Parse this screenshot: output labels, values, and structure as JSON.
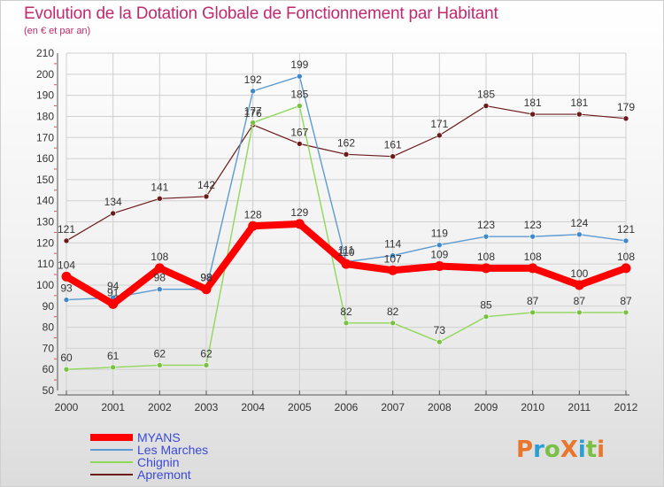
{
  "title": "Evolution de la Dotation Globale de Fonctionnement par Habitant",
  "subtitle": "(en € et par an)",
  "logo": {
    "text": "ProXiti",
    "colors": [
      "#e8762d",
      "#2a9fd6",
      "#7ac143",
      "#e8762d",
      "#2a9fd6",
      "#7ac143",
      "#e8762d"
    ]
  },
  "chart_data": {
    "type": "line",
    "title": "Evolution de la Dotation Globale de Fonctionnement par Habitant",
    "subtitle": "(en € et par an)",
    "xlabel": "",
    "ylabel": "",
    "ylim": [
      50,
      210
    ],
    "ystep": 10,
    "grid": true,
    "legend_position": "bottom-left",
    "categories": [
      "2000",
      "2001",
      "2002",
      "2003",
      "2004",
      "2005",
      "2006",
      "2007",
      "2008",
      "2009",
      "2010",
      "2011",
      "2012"
    ],
    "series": [
      {
        "name": "Apremont",
        "color": "#6b1a1a",
        "marker": "#6b1a1a",
        "width": 1.2,
        "values": [
          121,
          134,
          141,
          142,
          176,
          167,
          162,
          161,
          171,
          185,
          181,
          181,
          179
        ]
      },
      {
        "name": "Chignin",
        "color": "#8fd85a",
        "marker": "#7ac143",
        "width": 1.4,
        "values": [
          60,
          61,
          62,
          62,
          177,
          185,
          82,
          82,
          73,
          85,
          87,
          87,
          87
        ]
      },
      {
        "name": "Les Marches",
        "color": "#5b9bd1",
        "marker": "#3f88c9",
        "width": 1.4,
        "values": [
          93,
          94,
          98,
          98,
          192,
          199,
          111,
          114,
          119,
          123,
          123,
          124,
          121
        ]
      },
      {
        "name": "MYANS",
        "color": "#ff0000",
        "marker": "#ff0000",
        "width": 8,
        "values": [
          104,
          91,
          108,
          98,
          128,
          129,
          110,
          107,
          109,
          108,
          108,
          100,
          108
        ]
      }
    ],
    "legend_order": [
      "MYANS",
      "Les Marches",
      "Chignin",
      "Apremont"
    ]
  }
}
